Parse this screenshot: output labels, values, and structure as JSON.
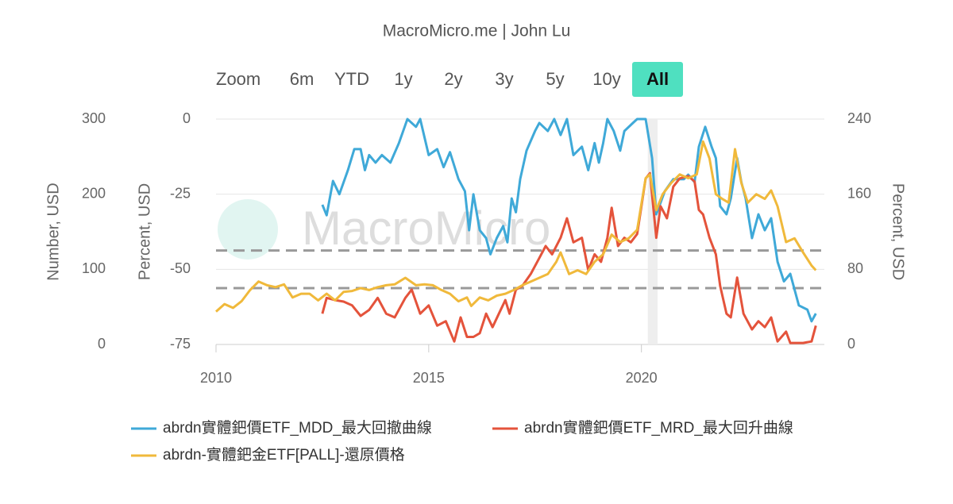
{
  "chart_data": {
    "type": "line",
    "title": "MacroMicro.me | John Lu",
    "watermark": "MacroMicro",
    "range_selector": {
      "label": "Zoom",
      "buttons": [
        "6m",
        "YTD",
        "1y",
        "2y",
        "3y",
        "5y",
        "10y",
        "All"
      ],
      "active": 7
    },
    "xlim": [
      2010,
      2024.3
    ],
    "xticks": [
      2010,
      2015,
      2020
    ],
    "ylabel": "Percent, USD",
    "ylim": [
      -75,
      0
    ],
    "yticks": [
      -75,
      -50,
      -25,
      0
    ],
    "y2label": "Percent, USD",
    "y2lim": [
      0,
      240
    ],
    "y2ticks": [
      0,
      80,
      160,
      240
    ],
    "y3label": "Number, USD",
    "y3lim": [
      0,
      300
    ],
    "y3ticks": [
      0,
      100,
      200,
      300
    ],
    "grid": true,
    "plot_lines": [
      {
        "axis": "y2",
        "value": 100
      },
      {
        "axis": "y2",
        "value": 60
      }
    ],
    "plot_bands": [
      [
        2020.15,
        2020.38
      ]
    ],
    "series": [
      {
        "name": "abrdn實體鈀價ETF_MDD_最大回撤曲線",
        "color": "#3fa9d8",
        "axis": "y",
        "x": [
          2012.5,
          2012.6,
          2012.75,
          2012.9,
          2013.1,
          2013.25,
          2013.4,
          2013.5,
          2013.6,
          2013.75,
          2013.9,
          2014.1,
          2014.3,
          2014.5,
          2014.7,
          2014.8,
          2015.0,
          2015.2,
          2015.35,
          2015.5,
          2015.7,
          2015.85,
          2015.95,
          2016.05,
          2016.2,
          2016.35,
          2016.45,
          2016.6,
          2016.75,
          2016.85,
          2016.95,
          2017.05,
          2017.15,
          2017.3,
          2017.5,
          2017.6,
          2017.8,
          2017.95,
          2018.1,
          2018.25,
          2018.4,
          2018.6,
          2018.75,
          2018.9,
          2019.0,
          2019.1,
          2019.2,
          2019.35,
          2019.5,
          2019.6,
          2019.8,
          2019.9,
          2020.1,
          2020.25,
          2020.35,
          2020.55,
          2020.75,
          2021.0,
          2021.1,
          2021.25,
          2021.35,
          2021.5,
          2021.65,
          2021.75,
          2021.85,
          2022.0,
          2022.1,
          2022.25,
          2022.35,
          2022.45,
          2022.6,
          2022.75,
          2022.9,
          2023.05,
          2023.2,
          2023.35,
          2023.5,
          2023.7,
          2023.9,
          2024.0,
          2024.1
        ],
        "values": [
          -28.5,
          -32,
          -20.6,
          -25,
          -17,
          -10,
          -10,
          -17,
          -12,
          -14.5,
          -12,
          -14.5,
          -8,
          0,
          -2.6,
          0,
          -12,
          -10,
          -16,
          -11,
          -20,
          -24,
          -37,
          -25,
          -37,
          -39.6,
          -45,
          -39.6,
          -35.6,
          -41,
          -26.4,
          -31,
          -20,
          -10.5,
          -4,
          -1.3,
          -4,
          0,
          -5.3,
          0,
          -12,
          -9.2,
          -17,
          -8,
          -14.5,
          -8,
          0,
          -4,
          -10.5,
          -4,
          -1.3,
          0,
          0,
          -13,
          -31.7,
          -24,
          -20,
          -20,
          -18.5,
          -21,
          -9.2,
          -2.6,
          -9.2,
          -13,
          -29,
          -31.7,
          -26.4,
          -13,
          -21,
          -26.4,
          -39.6,
          -31.7,
          -37,
          -33,
          -47.5,
          -54,
          -51.5,
          -62,
          -63.4,
          -67.3,
          -64.7
        ]
      },
      {
        "name": "abrdn實體鈀價ETF_MRD_最大回升曲線",
        "color": "#e4533b",
        "axis": "y3",
        "x": [
          2012.5,
          2012.6,
          2012.8,
          2013.0,
          2013.2,
          2013.4,
          2013.6,
          2013.8,
          2014.0,
          2014.2,
          2014.45,
          2014.6,
          2014.8,
          2015.0,
          2015.2,
          2015.4,
          2015.6,
          2015.75,
          2015.9,
          2016.05,
          2016.2,
          2016.35,
          2016.5,
          2016.65,
          2016.8,
          2016.9,
          2017.05,
          2017.2,
          2017.4,
          2017.6,
          2017.75,
          2017.9,
          2018.1,
          2018.25,
          2018.4,
          2018.6,
          2018.75,
          2018.9,
          2019.05,
          2019.2,
          2019.3,
          2019.45,
          2019.6,
          2019.75,
          2019.9,
          2020.0,
          2020.1,
          2020.2,
          2020.35,
          2020.45,
          2020.6,
          2020.75,
          2020.9,
          2021.1,
          2021.25,
          2021.35,
          2021.45,
          2021.6,
          2021.75,
          2021.85,
          2022.0,
          2022.1,
          2022.25,
          2022.4,
          2022.6,
          2022.75,
          2022.9,
          2023.05,
          2023.2,
          2023.4,
          2023.5,
          2023.8,
          2024.0,
          2024.1
        ],
        "values": [
          41,
          62,
          59,
          57,
          52,
          38,
          46,
          62,
          41,
          36,
          62,
          73,
          41,
          52,
          25,
          31,
          4,
          36,
          10,
          10,
          15,
          41,
          23,
          41,
          59,
          41,
          73,
          78,
          94,
          115,
          131,
          120,
          142,
          168,
          136,
          142,
          99,
          120,
          110,
          142,
          182,
          131,
          142,
          136,
          147,
          184,
          221,
          228,
          142,
          184,
          168,
          210,
          221,
          224,
          217,
          179,
          173,
          142,
          120,
          78,
          41,
          36,
          89,
          41,
          20,
          31,
          23,
          36,
          4,
          17,
          2,
          2,
          4,
          25
        ]
      },
      {
        "name": "abrdn-實體鈀金ETF[PALL]-還原價格",
        "color": "#f0b93b",
        "axis": "y2",
        "x": [
          2010.0,
          2010.2,
          2010.4,
          2010.6,
          2010.8,
          2011.0,
          2011.2,
          2011.4,
          2011.6,
          2011.8,
          2012.0,
          2012.2,
          2012.4,
          2012.6,
          2012.8,
          2013.0,
          2013.2,
          2013.4,
          2013.6,
          2013.8,
          2014.0,
          2014.2,
          2014.45,
          2014.7,
          2014.9,
          2015.1,
          2015.3,
          2015.5,
          2015.7,
          2015.9,
          2016.0,
          2016.2,
          2016.4,
          2016.6,
          2016.8,
          2017.0,
          2017.2,
          2017.4,
          2017.6,
          2017.8,
          2018.0,
          2018.1,
          2018.3,
          2018.5,
          2018.7,
          2018.9,
          2019.1,
          2019.3,
          2019.5,
          2019.7,
          2019.9,
          2020.1,
          2020.2,
          2020.35,
          2020.5,
          2020.7,
          2020.9,
          2021.1,
          2021.3,
          2021.45,
          2021.6,
          2021.75,
          2021.9,
          2022.05,
          2022.2,
          2022.35,
          2022.5,
          2022.7,
          2022.9,
          2023.05,
          2023.2,
          2023.4,
          2023.6,
          2023.8,
          2024.0,
          2024.1
        ],
        "values": [
          35,
          43,
          39,
          46,
          58,
          67,
          63,
          61,
          64,
          50,
          54,
          54,
          47,
          54,
          47,
          56,
          57,
          60,
          58,
          61,
          63,
          64,
          71,
          63,
          64,
          63,
          58,
          54,
          46,
          50,
          41,
          50,
          47,
          52,
          54,
          58,
          63,
          67,
          71,
          75,
          88,
          98,
          75,
          79,
          75,
          88,
          96,
          117,
          109,
          113,
          122,
          177,
          181,
          143,
          160,
          172,
          181,
          177,
          181,
          216,
          198,
          160,
          155,
          151,
          208,
          172,
          151,
          160,
          155,
          164,
          147,
          109,
          113,
          98,
          84,
          79
        ]
      }
    ]
  }
}
